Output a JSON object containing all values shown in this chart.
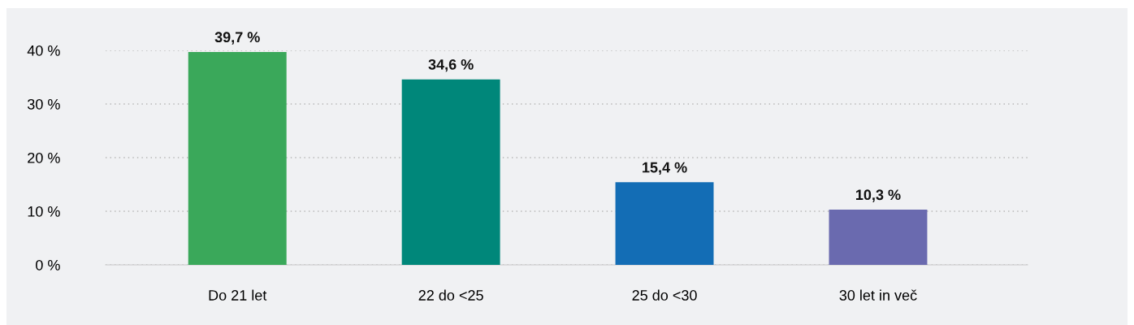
{
  "chart_data": {
    "type": "bar",
    "categories": [
      "Do 21 let",
      "22 do <25",
      "25 do <30",
      "30 let in več"
    ],
    "values": [
      39.7,
      34.6,
      15.4,
      10.3
    ],
    "colors": [
      "#3aa85a",
      "#00877a",
      "#136db5",
      "#6a6aaf"
    ],
    "value_labels": [
      "39,7 %",
      "34,6 %",
      "15,4 %",
      "10,3 %"
    ],
    "ylim": [
      0,
      40
    ],
    "yticks": [
      {
        "value": 0,
        "label": "0 %"
      },
      {
        "value": 10,
        "label": "10 %"
      },
      {
        "value": 20,
        "label": "20 %"
      },
      {
        "value": 30,
        "label": "30 %"
      },
      {
        "value": 40,
        "label": "40 %"
      }
    ],
    "grid": "y",
    "legend": false
  }
}
